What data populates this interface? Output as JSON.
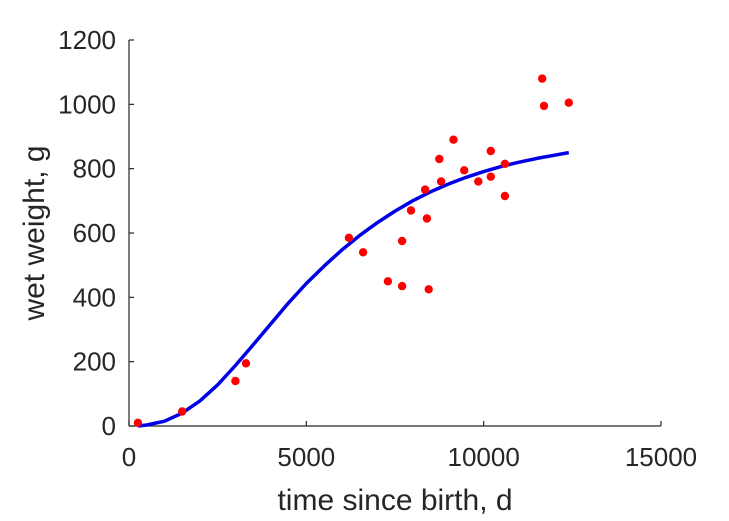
{
  "chart_data": {
    "type": "scatter",
    "title": "",
    "xlabel": "time since birth, d",
    "ylabel": "wet weight, g",
    "xlim": [
      0,
      15000
    ],
    "ylim": [
      0,
      1200
    ],
    "xticks": [
      0,
      5000,
      10000,
      15000
    ],
    "yticks": [
      0,
      200,
      400,
      600,
      800,
      1000,
      1200
    ],
    "grid": false,
    "legend": "none",
    "series": [
      {
        "kind": "points",
        "color": "#ff0000",
        "x": [
          250,
          1500,
          3000,
          3300,
          6200,
          6600,
          7300,
          7700,
          7700,
          7950,
          8350,
          8400,
          8450,
          8750,
          8800,
          9150,
          9450,
          9850,
          10200,
          10200,
          10600,
          10600,
          11650,
          11700,
          12400
        ],
        "y": [
          10,
          45,
          140,
          195,
          585,
          540,
          450,
          435,
          575,
          670,
          735,
          645,
          425,
          830,
          760,
          890,
          795,
          760,
          855,
          775,
          815,
          715,
          1080,
          995,
          1005
        ]
      },
      {
        "kind": "curve",
        "color": "#0000e6",
        "x": [
          250,
          500,
          1000,
          1500,
          2000,
          2500,
          3000,
          3500,
          4000,
          4500,
          5000,
          5500,
          6000,
          6500,
          7000,
          7500,
          8000,
          8500,
          9000,
          9500,
          10000,
          10500,
          11000,
          11500,
          12000,
          12400
        ],
        "y": [
          0,
          3,
          15,
          40,
          78,
          128,
          188,
          252,
          318,
          383,
          443,
          497,
          547,
          592,
          632,
          668,
          700,
          728,
          752,
          773,
          791,
          807,
          820,
          832,
          842,
          850
        ]
      }
    ]
  }
}
